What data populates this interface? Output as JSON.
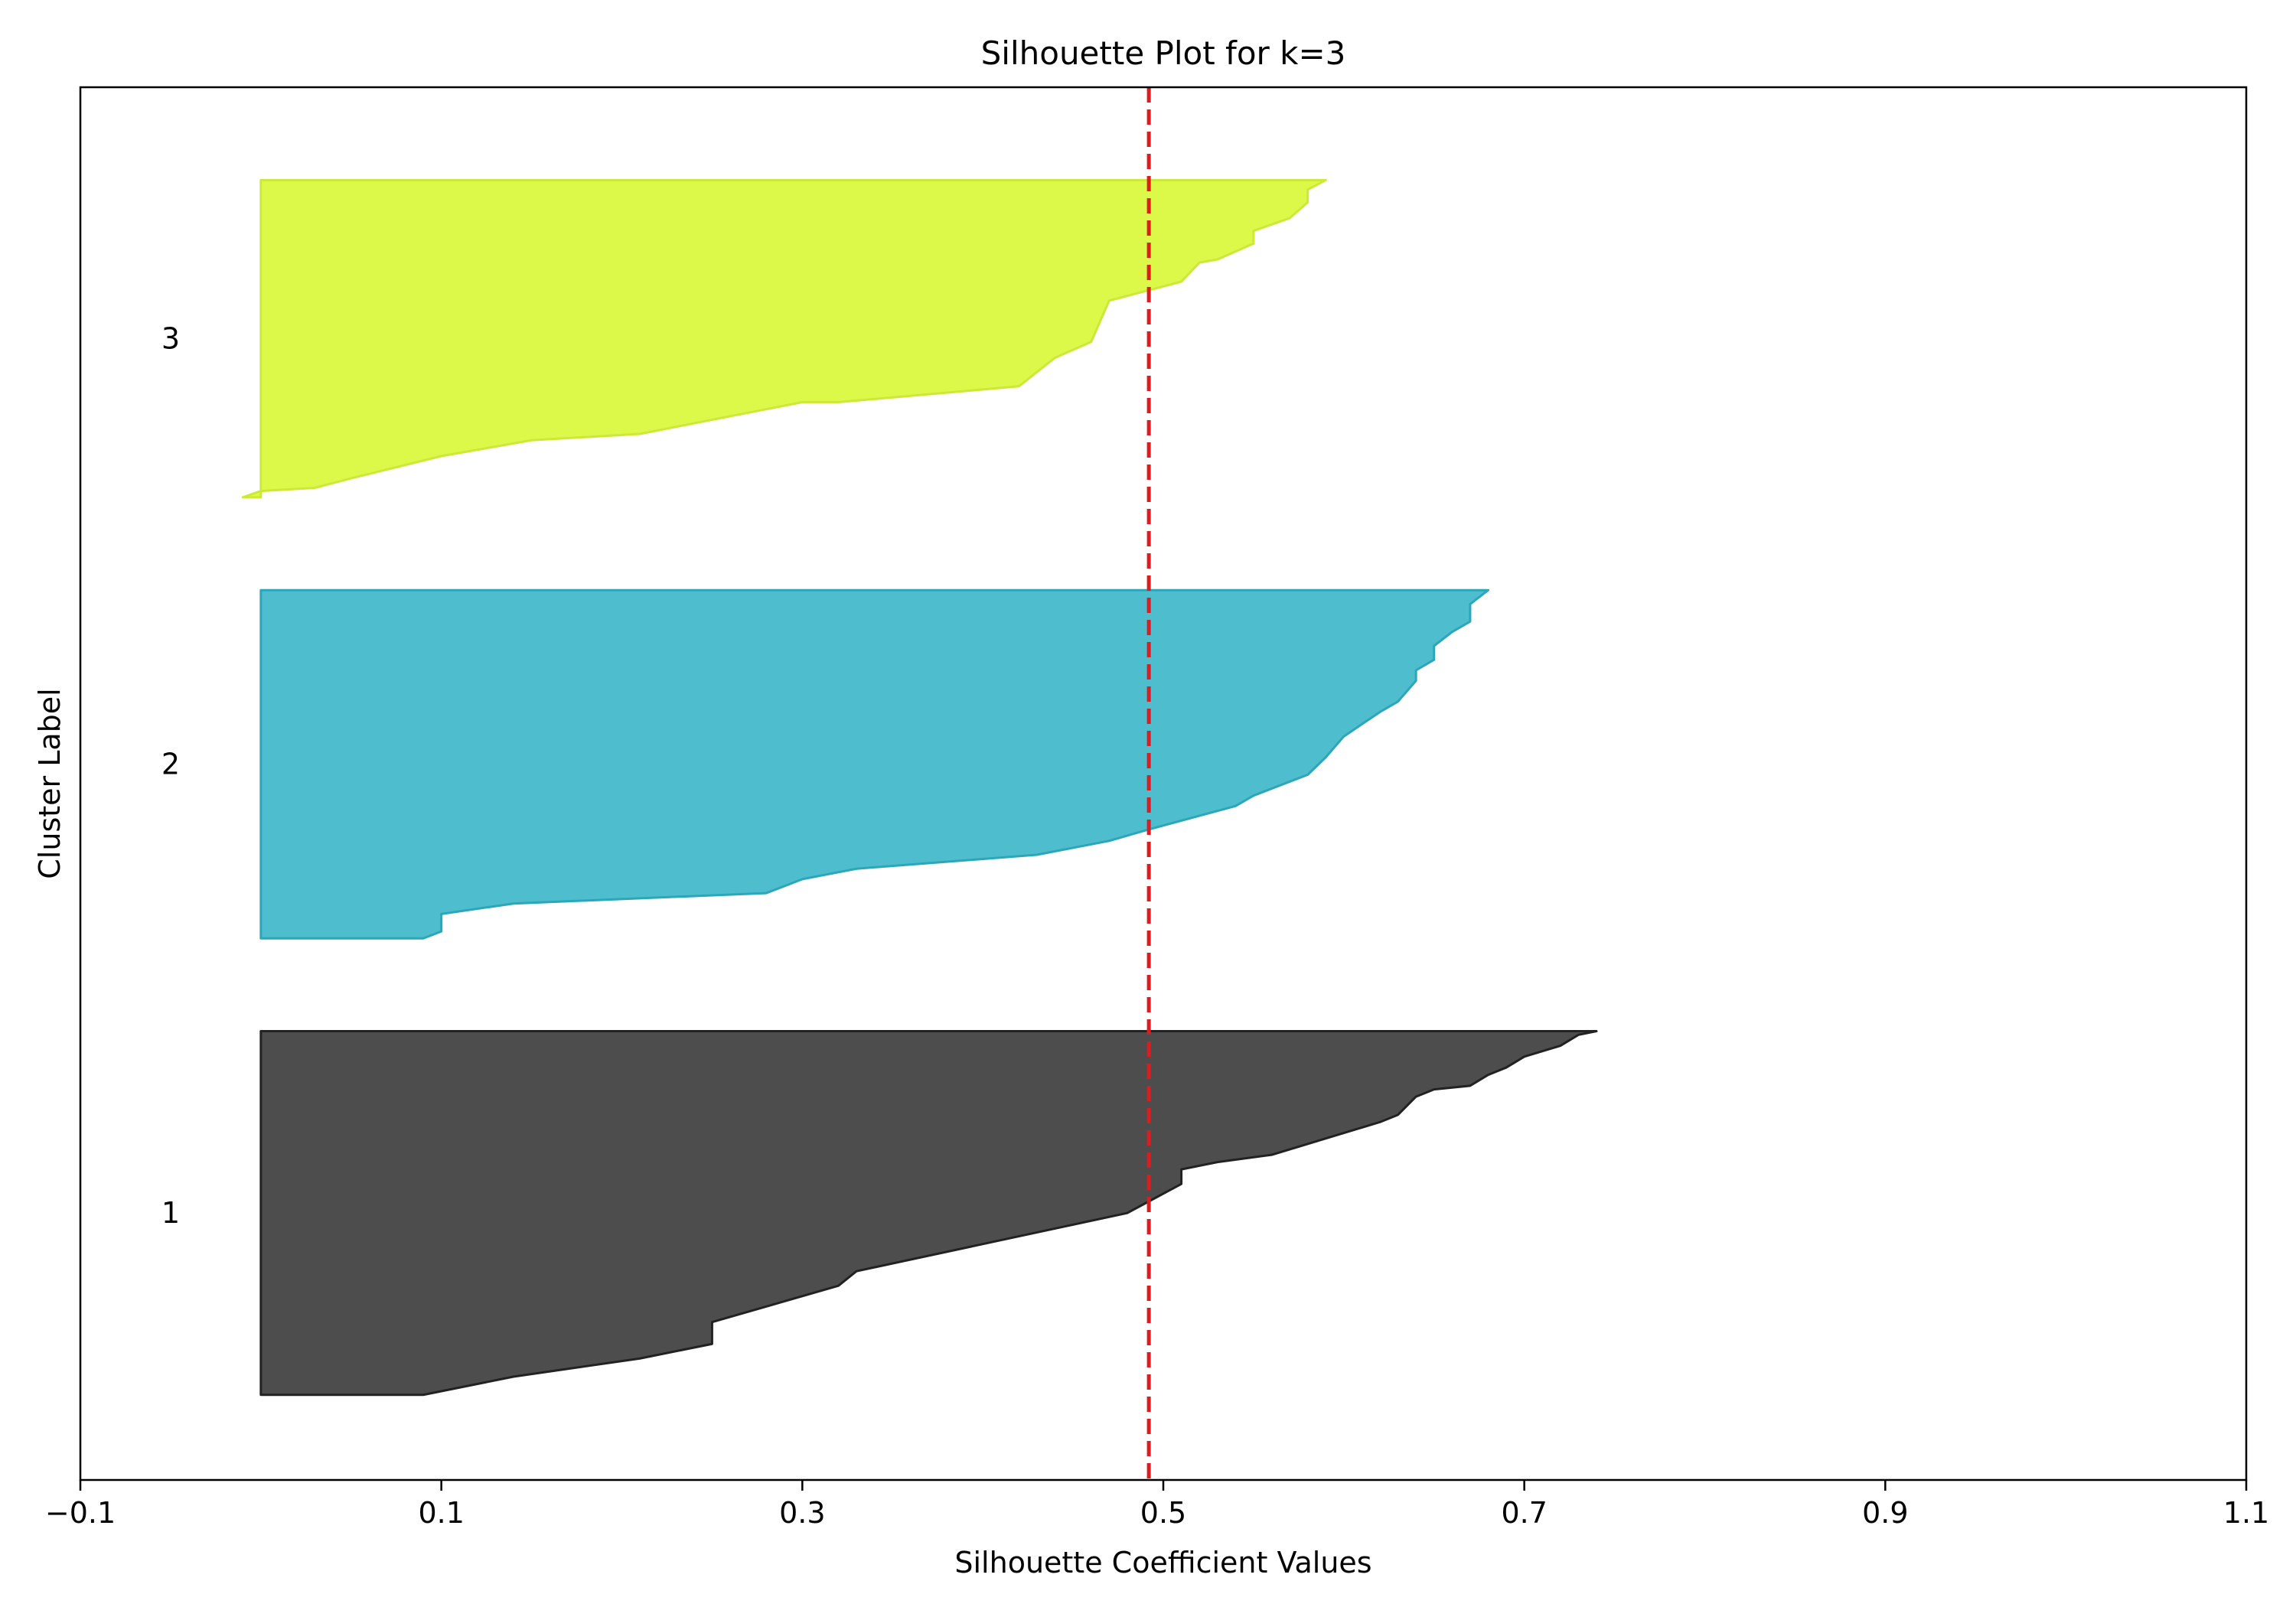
{
  "chart_data": {
    "type": "area",
    "title": "Silhouette Plot for k=3",
    "xlabel": "Silhouette Coefficient Values",
    "ylabel": "Cluster Label",
    "xlim": [
      -0.1,
      1.1
    ],
    "ylim": [
      0,
      900
    ],
    "xticks": [
      -0.1,
      0.1,
      0.3,
      0.5,
      0.7,
      0.9,
      1.1
    ],
    "xtick_labels": [
      "−0.1",
      "0.1",
      "0.3",
      "0.5",
      "0.7",
      "0.9",
      "1.1"
    ],
    "yticks": [],
    "grid": false,
    "average_line": {
      "x": 0.492,
      "style": "dashed",
      "color": "#e31a1c"
    },
    "clusters": [
      {
        "label": "1",
        "y_lower": 55,
        "y_upper": 290,
        "fill": "#4d4d4d",
        "edge": "#222222",
        "profile": [
          [
            0.0,
            0.09
          ],
          [
            0.05,
            0.14
          ],
          [
            0.1,
            0.21
          ],
          [
            0.13,
            0.24
          ],
          [
            0.14,
            0.25
          ],
          [
            0.2,
            0.25
          ],
          [
            0.3,
            0.32
          ],
          [
            0.34,
            0.33
          ],
          [
            0.5,
            0.48
          ],
          [
            0.58,
            0.51
          ],
          [
            0.62,
            0.51
          ],
          [
            0.64,
            0.53
          ],
          [
            0.66,
            0.56
          ],
          [
            0.75,
            0.62
          ],
          [
            0.77,
            0.63
          ],
          [
            0.82,
            0.64
          ],
          [
            0.84,
            0.65
          ],
          [
            0.85,
            0.67
          ],
          [
            0.88,
            0.68
          ],
          [
            0.9,
            0.69
          ],
          [
            0.93,
            0.7
          ],
          [
            0.96,
            0.72
          ],
          [
            0.99,
            0.73
          ],
          [
            1.0,
            0.74
          ]
        ]
      },
      {
        "label": "2",
        "y_lower": 350,
        "y_upper": 575,
        "fill": "#4ebdcd",
        "edge": "#2aa7b8",
        "profile": [
          [
            0.0,
            0.09
          ],
          [
            0.02,
            0.1
          ],
          [
            0.07,
            0.1
          ],
          [
            0.1,
            0.14
          ],
          [
            0.13,
            0.28
          ],
          [
            0.17,
            0.3
          ],
          [
            0.2,
            0.33
          ],
          [
            0.24,
            0.43
          ],
          [
            0.26,
            0.45
          ],
          [
            0.28,
            0.47
          ],
          [
            0.31,
            0.49
          ],
          [
            0.38,
            0.54
          ],
          [
            0.41,
            0.55
          ],
          [
            0.47,
            0.58
          ],
          [
            0.52,
            0.59
          ],
          [
            0.58,
            0.6
          ],
          [
            0.65,
            0.62
          ],
          [
            0.68,
            0.63
          ],
          [
            0.74,
            0.64
          ],
          [
            0.77,
            0.64
          ],
          [
            0.8,
            0.65
          ],
          [
            0.84,
            0.65
          ],
          [
            0.88,
            0.66
          ],
          [
            0.91,
            0.67
          ],
          [
            0.96,
            0.67
          ],
          [
            1.0,
            0.68
          ]
        ]
      },
      {
        "label": "3",
        "y_lower": 635,
        "y_upper": 840,
        "fill": "#dcf94a",
        "edge": "#cbe935",
        "profile": [
          [
            0.0,
            -0.01
          ],
          [
            0.02,
            0.0
          ],
          [
            0.03,
            0.03
          ],
          [
            0.06,
            0.05
          ],
          [
            0.13,
            0.1
          ],
          [
            0.18,
            0.15
          ],
          [
            0.2,
            0.21
          ],
          [
            0.3,
            0.3
          ],
          [
            0.3,
            0.32
          ],
          [
            0.35,
            0.42
          ],
          [
            0.44,
            0.44
          ],
          [
            0.49,
            0.46
          ],
          [
            0.62,
            0.47
          ],
          [
            0.68,
            0.51
          ],
          [
            0.74,
            0.52
          ],
          [
            0.75,
            0.53
          ],
          [
            0.8,
            0.55
          ],
          [
            0.84,
            0.55
          ],
          [
            0.88,
            0.57
          ],
          [
            0.93,
            0.58
          ],
          [
            0.97,
            0.58
          ],
          [
            1.0,
            0.59
          ]
        ]
      }
    ]
  }
}
